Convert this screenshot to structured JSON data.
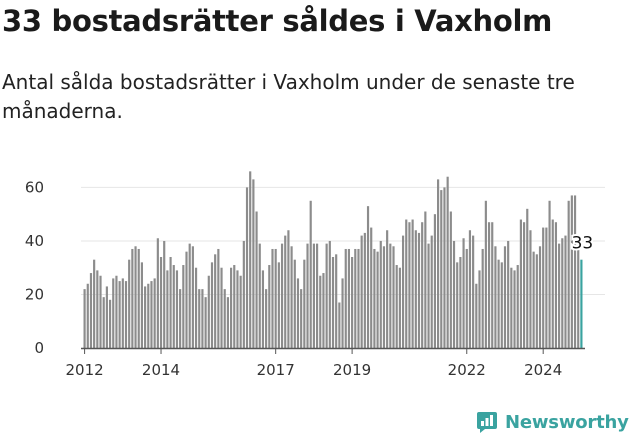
{
  "headline": "33 bostadsrätter såldes i Vaxholm",
  "subtitle": "Antal sålda bostadsrätter i Vaxholm under de senaste tre månaderna.",
  "brand": {
    "name": "Newsworthy",
    "color": "#3aa3a0"
  },
  "colors": {
    "bar": "#8c8c8c",
    "highlight": "#3aa3a0",
    "axis": "#555555",
    "grid": "#e6e6e6"
  },
  "chart_data": {
    "type": "bar",
    "title": "33 bostadsrätter såldes i Vaxholm",
    "xlabel": "",
    "ylabel": "",
    "ylim": [
      0,
      68
    ],
    "yticks": [
      0,
      20,
      40,
      60
    ],
    "grid": true,
    "xticks": [
      {
        "label": "2012",
        "index": 0
      },
      {
        "label": "2014",
        "index": 24
      },
      {
        "label": "2017",
        "index": 60
      },
      {
        "label": "2019",
        "index": 84
      },
      {
        "label": "2022",
        "index": 120
      },
      {
        "label": "2024",
        "index": 144
      }
    ],
    "values": [
      22,
      24,
      28,
      33,
      29,
      27,
      19,
      23,
      18,
      26,
      27,
      25,
      26,
      25,
      33,
      37,
      38,
      37,
      32,
      23,
      24,
      25,
      26,
      41,
      34,
      40,
      29,
      34,
      31,
      29,
      22,
      31,
      36,
      39,
      38,
      30,
      22,
      22,
      19,
      27,
      32,
      35,
      37,
      30,
      22,
      19,
      30,
      31,
      29,
      27,
      40,
      60,
      66,
      63,
      51,
      39,
      29,
      22,
      31,
      37,
      37,
      32,
      39,
      42,
      44,
      38,
      33,
      26,
      22,
      33,
      39,
      55,
      39,
      39,
      27,
      28,
      39,
      40,
      34,
      35,
      17,
      26,
      37,
      37,
      34,
      37,
      37,
      42,
      43,
      53,
      45,
      37,
      36,
      40,
      38,
      44,
      39,
      38,
      31,
      30,
      42,
      48,
      47,
      48,
      44,
      43,
      47,
      51,
      39,
      42,
      50,
      63,
      59,
      60,
      64,
      51,
      40,
      32,
      34,
      41,
      37,
      44,
      42,
      24,
      29,
      37,
      55,
      47,
      47,
      38,
      33,
      32,
      38,
      40,
      30,
      29,
      31,
      48,
      47,
      52,
      44,
      36,
      35,
      38,
      45,
      45,
      55,
      48,
      47,
      39,
      41,
      42,
      55,
      57,
      57,
      37,
      33
    ],
    "highlight_index": 156,
    "highlight_label": "33"
  }
}
